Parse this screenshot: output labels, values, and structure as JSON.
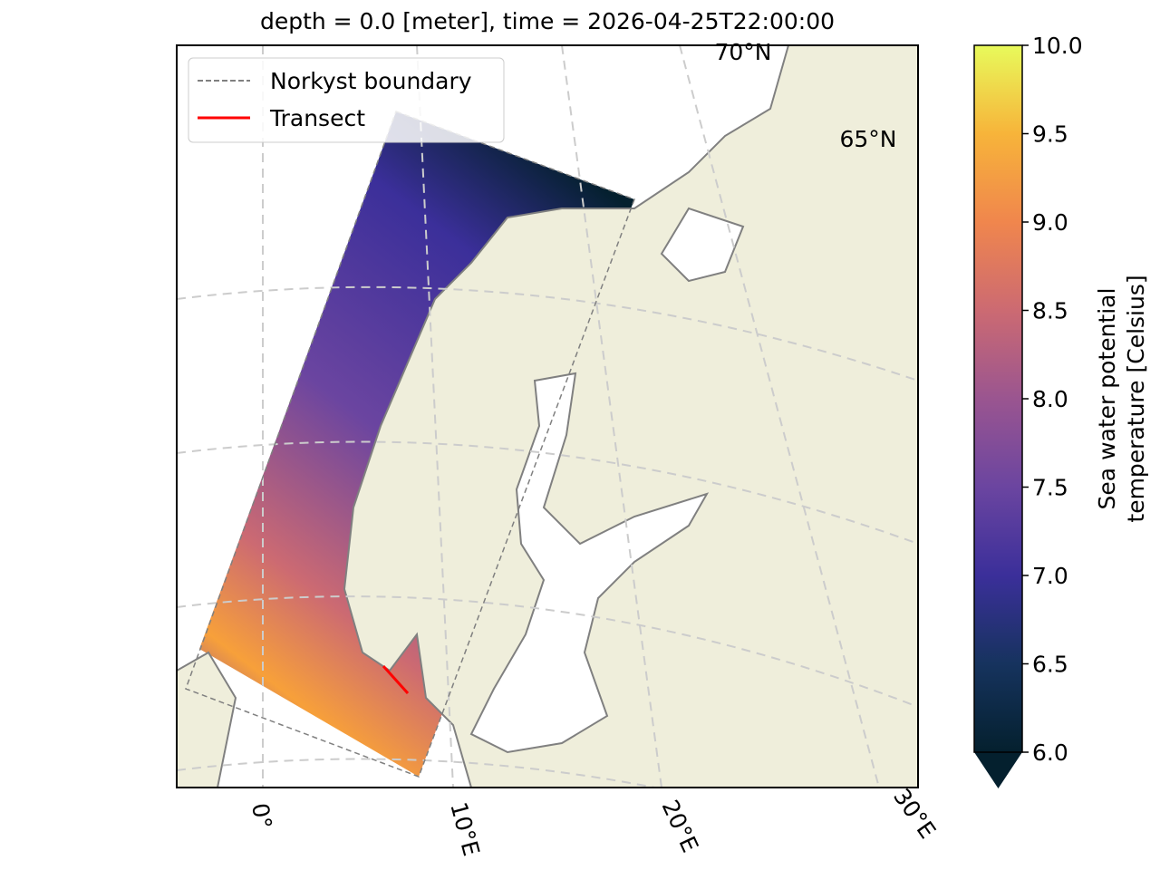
{
  "map": {
    "title": "depth = 0.0 [meter], time = 2026-04-25T22:00:00",
    "legend": [
      {
        "label": "Norkyst boundary",
        "color": "#808080"
      },
      {
        "label": "Transect",
        "color": "#ff0000"
      }
    ],
    "lon_labels": [
      "0°",
      "10°E",
      "20°E",
      "30°E"
    ],
    "lat_labels": [
      "70°N",
      "65°N"
    ],
    "colorbar": {
      "label": [
        "Sea water potential",
        "temperature [Celsius]"
      ],
      "lim": [
        6,
        10
      ],
      "ticks": [
        {
          "value": 6,
          "label": "6.0"
        },
        {
          "value": 6.5,
          "label": "6.5"
        },
        {
          "value": 7,
          "label": "7.0"
        },
        {
          "value": 7.5,
          "label": "7.5"
        },
        {
          "value": 8,
          "label": "8.0"
        },
        {
          "value": 8.5,
          "label": "8.5"
        },
        {
          "value": 9,
          "label": "9.0"
        },
        {
          "value": 9.5,
          "label": "9.5"
        },
        {
          "value": 10,
          "label": "10.0"
        }
      ]
    }
  }
}
